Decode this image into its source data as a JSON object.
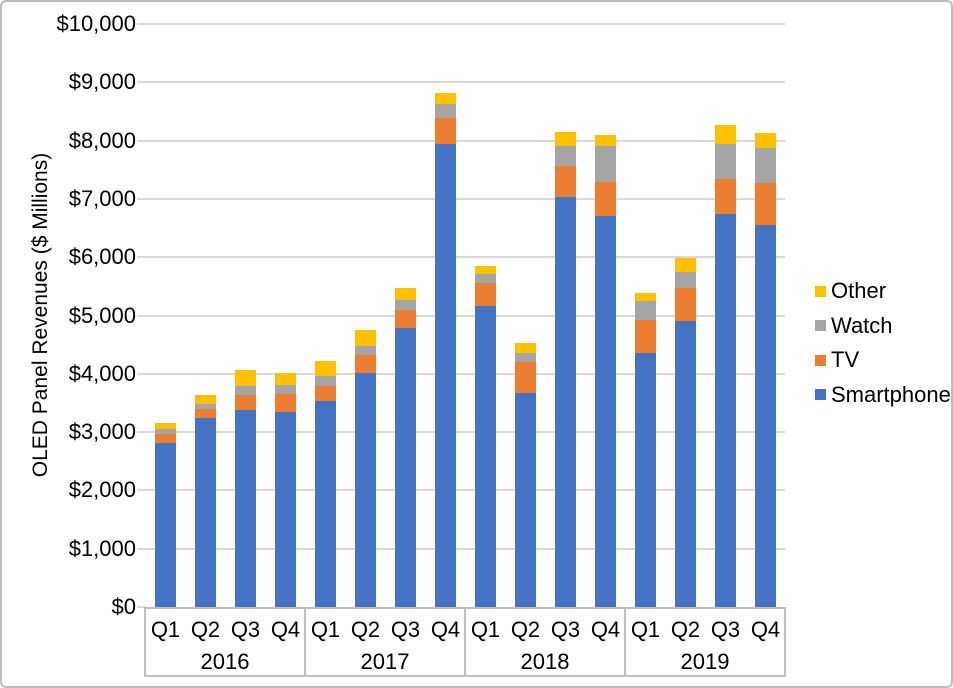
{
  "window": {
    "background": "#ffffff",
    "frame_border_color": "#bdbdbd"
  },
  "chart_data": {
    "type": "bar",
    "stacked": true,
    "title": "",
    "xlabel": "",
    "ylabel": "OLED Panel Revenues ($ Millions)",
    "ylim": [
      0,
      10000
    ],
    "ytick_interval": 1000,
    "ytick_labels": [
      "$0",
      "$1,000",
      "$2,000",
      "$3,000",
      "$4,000",
      "$5,000",
      "$6,000",
      "$7,000",
      "$8,000",
      "$9,000",
      "$10,000"
    ],
    "grid": true,
    "grid_color": "#d9d9d9",
    "axis_box_color": "#bfbfbf",
    "text_color": "#000000",
    "years": [
      "2016",
      "2017",
      "2018",
      "2019"
    ],
    "quarters_per_year": [
      "Q1",
      "Q2",
      "Q3",
      "Q4"
    ],
    "categories": [
      "2016 Q1",
      "2016 Q2",
      "2016 Q3",
      "2016 Q4",
      "2017 Q1",
      "2017 Q2",
      "2017 Q3",
      "2017 Q4",
      "2018 Q1",
      "2018 Q2",
      "2018 Q3",
      "2018 Q4",
      "2019 Q1",
      "2019 Q2",
      "2019 Q3",
      "2019 Q4"
    ],
    "series": [
      {
        "name": "Smartphone",
        "color": "#4472C4",
        "values": [
          2810,
          3240,
          3380,
          3350,
          3535,
          4020,
          4780,
          7935,
          5170,
          3675,
          7025,
          6710,
          4350,
          4910,
          6735,
          6550
        ]
      },
      {
        "name": "TV",
        "color": "#ED7D31",
        "values": [
          160,
          160,
          255,
          305,
          255,
          300,
          315,
          445,
          385,
          520,
          545,
          580,
          565,
          565,
          600,
          715
        ]
      },
      {
        "name": "Watch",
        "color": "#A5A5A5",
        "values": [
          80,
          85,
          155,
          155,
          180,
          160,
          170,
          240,
          160,
          165,
          345,
          610,
          330,
          265,
          600,
          600
        ]
      },
      {
        "name": "Other",
        "color": "#FFC000",
        "values": [
          110,
          155,
          275,
          200,
          250,
          270,
          210,
          190,
          135,
          160,
          235,
          200,
          145,
          240,
          330,
          270
        ]
      }
    ],
    "legend": {
      "position": "right",
      "order_top_to_bottom": [
        "Other",
        "Watch",
        "TV",
        "Smartphone"
      ]
    }
  }
}
